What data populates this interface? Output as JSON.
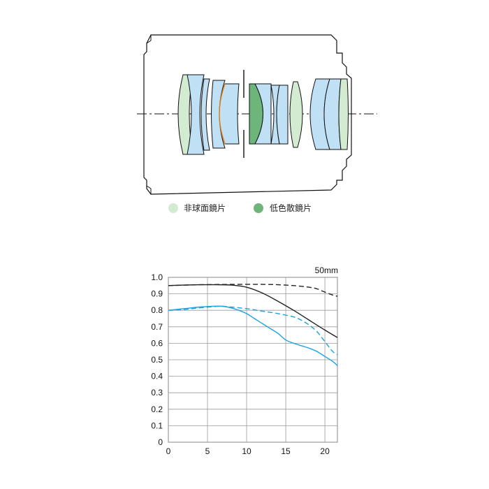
{
  "legend": {
    "aspherical_label": "非球面鏡片",
    "ld_label": "低色散鏡片"
  },
  "colors": {
    "element_blue": "#bfe0f5",
    "aspherical_green": "#d3ebd0",
    "ld_green": "#6db57a",
    "outline": "#111111",
    "orange_interface": "#e07a10",
    "mtf_black": "#222222",
    "mtf_blue": "#1aa3e0"
  },
  "chart_data": {
    "type": "line",
    "focal_length": "50mm",
    "xlim": [
      0,
      21.6
    ],
    "ylim": [
      0,
      1.0
    ],
    "x_ticks": [
      "0",
      "5",
      "10",
      "15",
      "20"
    ],
    "y_ticks": [
      "0",
      "0.1",
      "0.2",
      "0.3",
      "0.4",
      "0.5",
      "0.6",
      "0.7",
      "0.8",
      "0.9",
      "1.0"
    ],
    "grid": true,
    "series": [
      {
        "color": "#222222",
        "dash": false,
        "x": [
          0,
          2,
          4,
          6,
          8,
          10,
          12,
          14,
          16,
          18,
          20,
          21.6
        ],
        "y": [
          0.95,
          0.953,
          0.955,
          0.955,
          0.953,
          0.94,
          0.905,
          0.855,
          0.8,
          0.74,
          0.68,
          0.635
        ]
      },
      {
        "color": "#222222",
        "dash": true,
        "x": [
          0,
          4,
          8,
          12,
          14,
          16,
          18,
          19,
          20,
          21,
          21.6
        ],
        "y": [
          0.95,
          0.955,
          0.957,
          0.957,
          0.955,
          0.95,
          0.94,
          0.93,
          0.91,
          0.893,
          0.885
        ]
      },
      {
        "color": "#1aa3e0",
        "dash": false,
        "x": [
          0,
          2,
          4,
          6,
          7,
          8,
          9,
          10,
          11,
          12,
          13,
          14,
          15,
          16,
          17,
          18,
          19,
          20,
          21,
          21.6
        ],
        "y": [
          0.8,
          0.81,
          0.82,
          0.825,
          0.824,
          0.815,
          0.8,
          0.78,
          0.75,
          0.72,
          0.69,
          0.66,
          0.62,
          0.6,
          0.585,
          0.57,
          0.55,
          0.52,
          0.49,
          0.465
        ]
      },
      {
        "color": "#1aa3e0",
        "dash": true,
        "x": [
          0,
          2,
          4,
          6,
          7,
          8,
          10,
          12,
          14,
          16,
          17,
          18,
          19,
          20,
          21,
          21.6
        ],
        "y": [
          0.8,
          0.805,
          0.815,
          0.823,
          0.824,
          0.82,
          0.81,
          0.795,
          0.78,
          0.76,
          0.74,
          0.71,
          0.67,
          0.61,
          0.55,
          0.53
        ]
      }
    ]
  }
}
